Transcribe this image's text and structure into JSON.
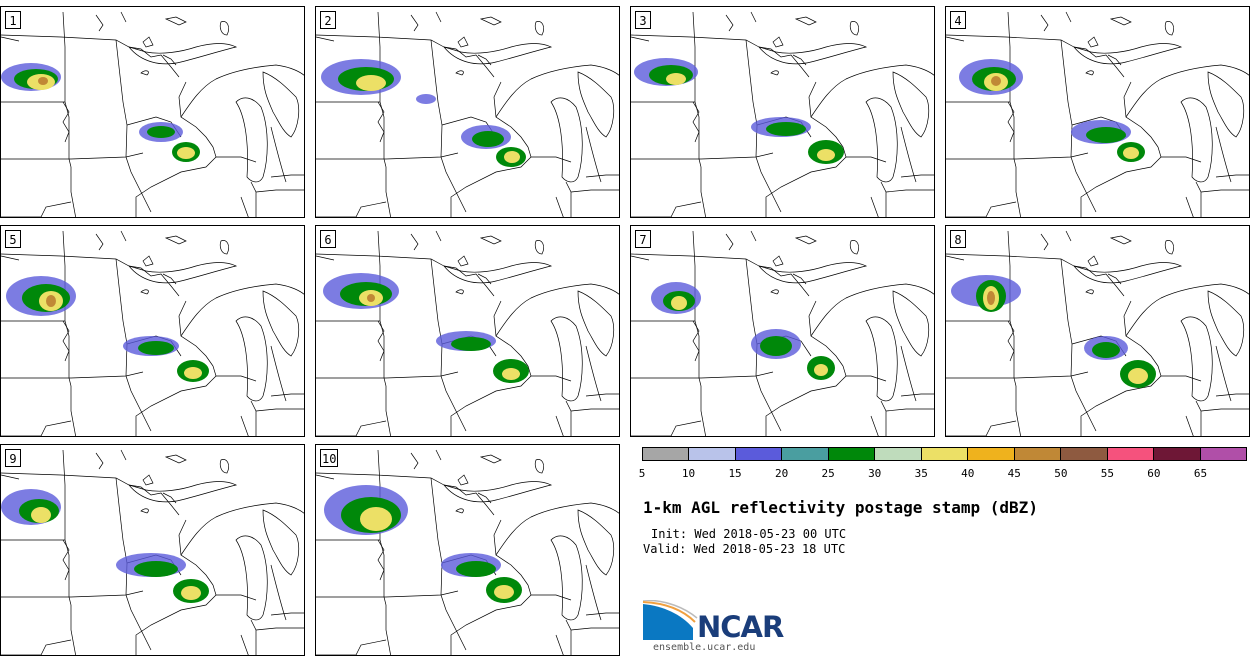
{
  "panels": [
    {
      "label": "1"
    },
    {
      "label": "2"
    },
    {
      "label": "3"
    },
    {
      "label": "4"
    },
    {
      "label": "5"
    },
    {
      "label": "6"
    },
    {
      "label": "7"
    },
    {
      "label": "8"
    },
    {
      "label": "9"
    },
    {
      "label": "10"
    }
  ],
  "colorbar": {
    "colors": [
      "#a6a6a6",
      "#b9c3ea",
      "#5b5bdb",
      "#4a9ea0",
      "#00880a",
      "#bfdcbc",
      "#ece066",
      "#efb21d",
      "#c08836",
      "#8e5a40",
      "#f5527d",
      "#6e1736",
      "#b04fa8"
    ],
    "ticks": [
      "5",
      "10",
      "15",
      "20",
      "25",
      "30",
      "35",
      "40",
      "45",
      "50",
      "55",
      "60",
      "65"
    ]
  },
  "title": "1-km AGL reflectivity postage stamp (dBZ)",
  "init": "Init: Wed 2018-05-23 00 UTC",
  "valid": "Valid: Wed 2018-05-23 18 UTC",
  "logo": {
    "name": "NCAR",
    "site": "ensemble.ucar.edu"
  }
}
